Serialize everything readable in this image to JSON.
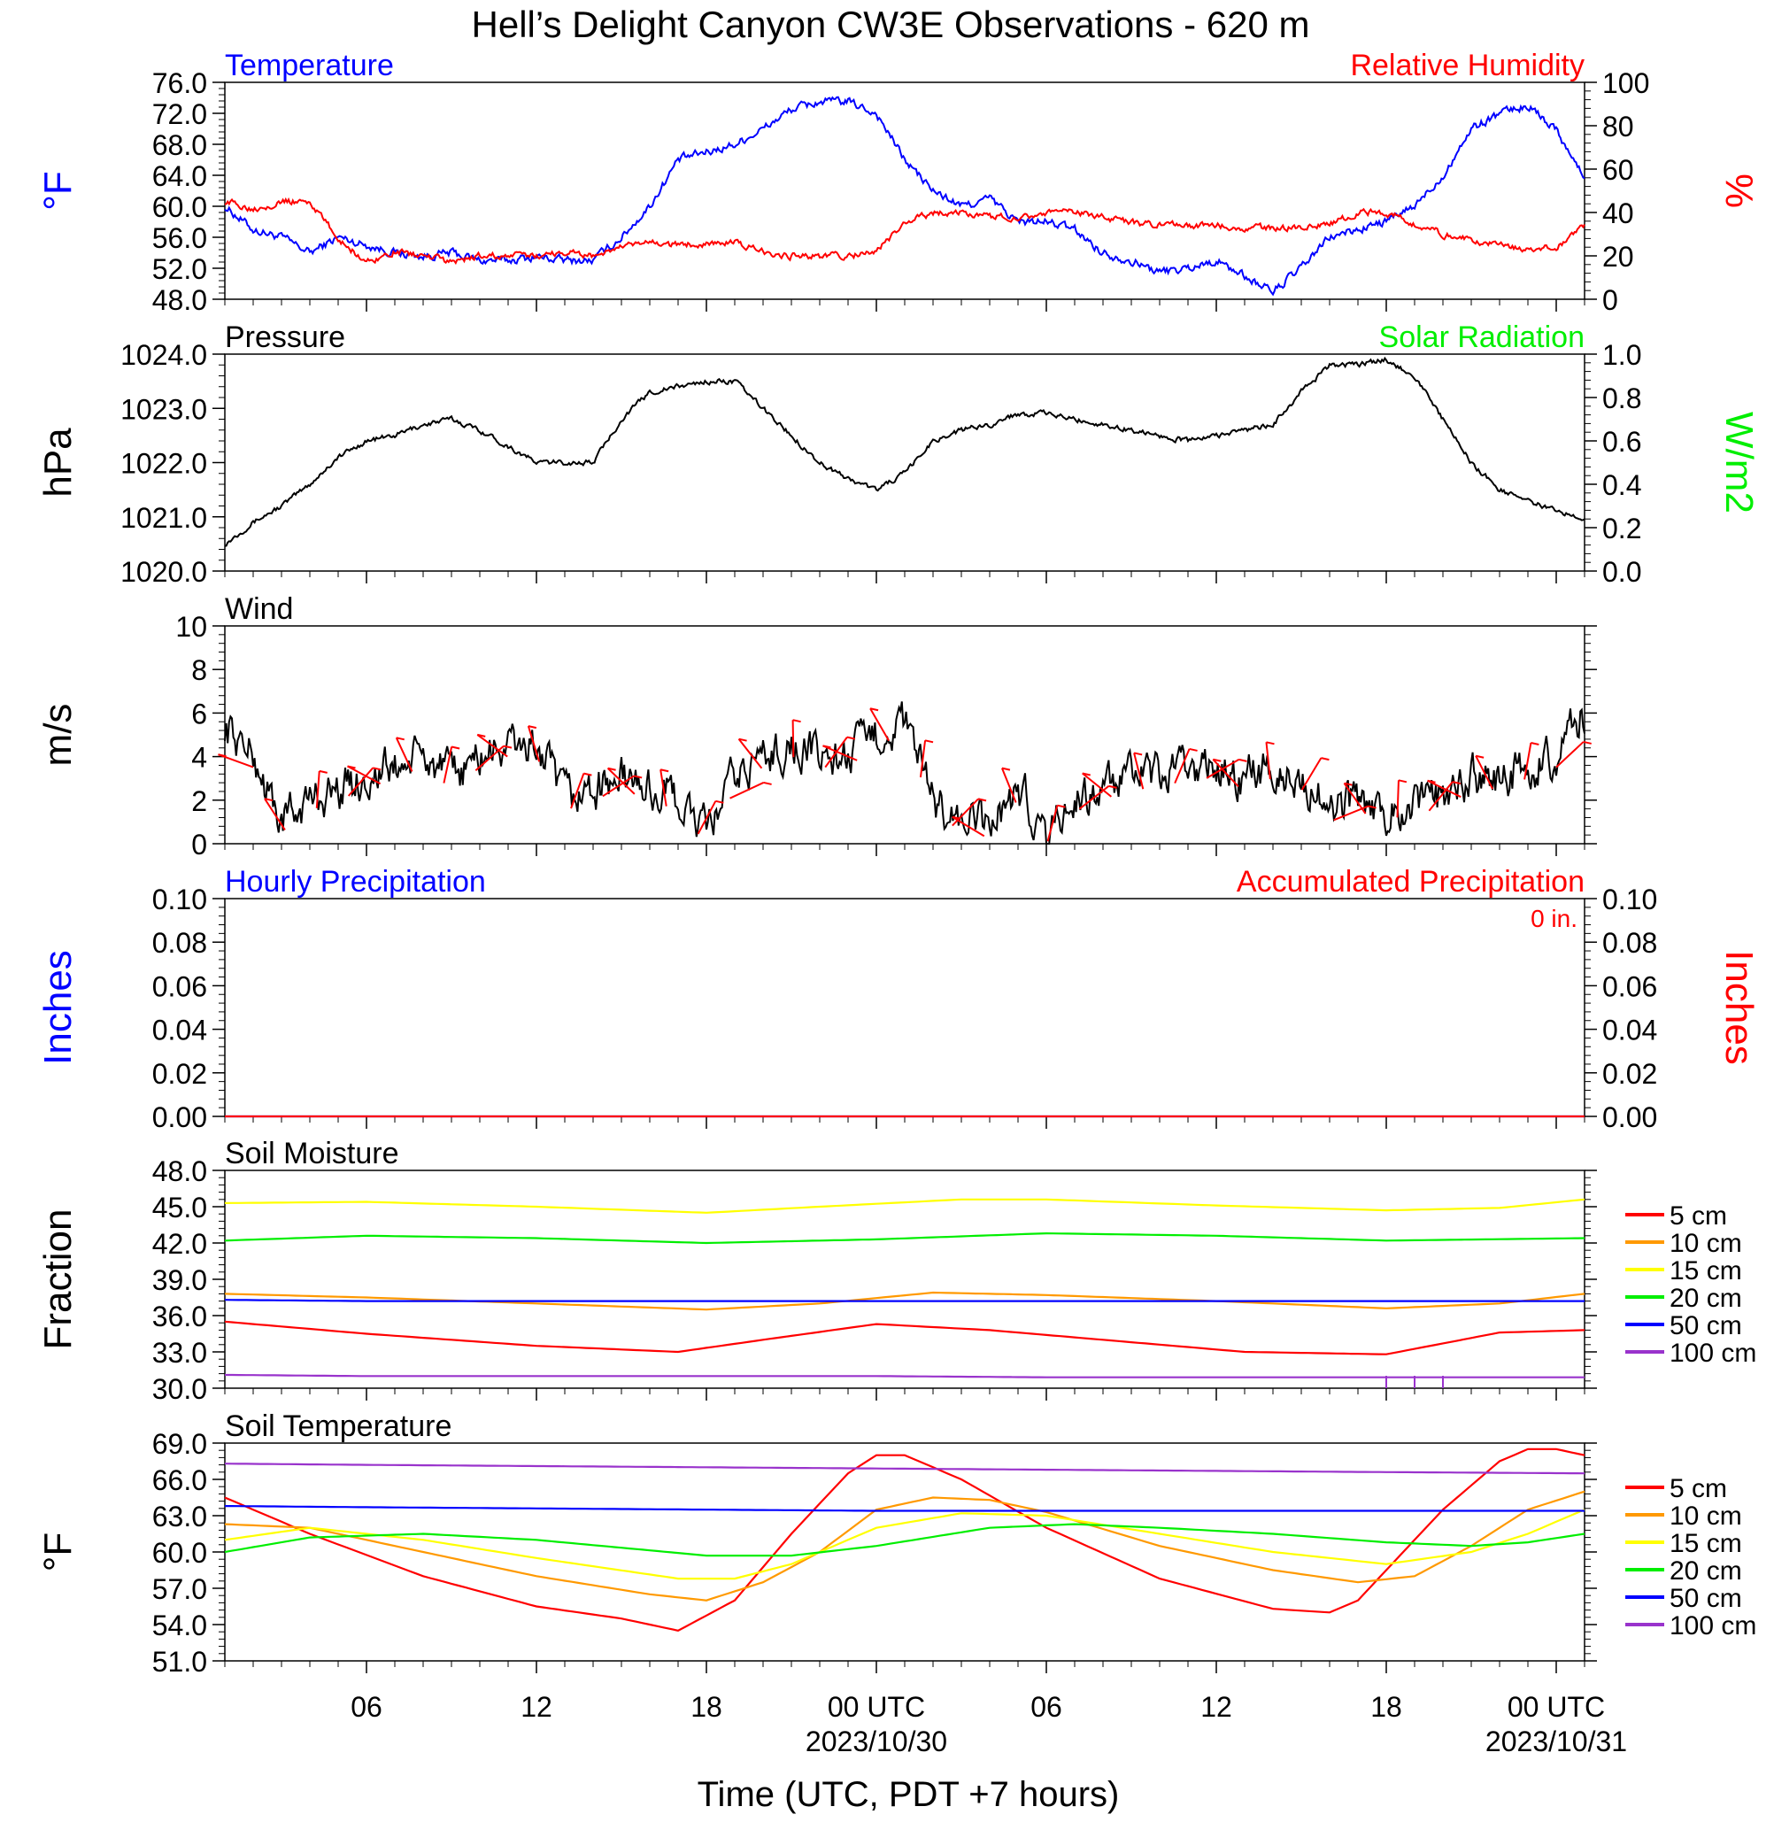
{
  "title": "Hell’s Delight Canyon CW3E Observations - 620 m",
  "xaxis": {
    "title": "Time (UTC, PDT +7 hours)",
    "range_hours": [
      -23,
      25
    ],
    "ticks": [
      {
        "h": -18,
        "label": "06",
        "date": ""
      },
      {
        "h": -12,
        "label": "12",
        "date": ""
      },
      {
        "h": -6,
        "label": "18",
        "date": ""
      },
      {
        "h": 0,
        "label": "00 UTC",
        "date": "2023/10/30"
      },
      {
        "h": 6,
        "label": "06",
        "date": ""
      },
      {
        "h": 12,
        "label": "12",
        "date": ""
      },
      {
        "h": 18,
        "label": "18",
        "date": ""
      },
      {
        "h": 24,
        "label": "00 UTC",
        "date": "2023/10/31"
      }
    ]
  },
  "colors": {
    "blue": "#0000ff",
    "red": "#ff0000",
    "green": "#00ee00",
    "black": "#000000"
  },
  "panels": {
    "temperature": {
      "left_title": "Temperature",
      "right_title": "Relative Humidity",
      "left_unit": "°F",
      "right_unit": "%",
      "left_ticks": [
        "76.0",
        "72.0",
        "68.0",
        "64.0",
        "60.0",
        "56.0",
        "52.0",
        "48.0"
      ],
      "right_ticks": [
        "100",
        "80",
        "60",
        "40",
        "20",
        "0"
      ]
    },
    "pressure": {
      "left_title": "Pressure",
      "right_title": "Solar Radiation",
      "left_unit": "hPa",
      "right_unit": "W/m2",
      "left_ticks": [
        "1024.0",
        "1023.0",
        "1022.0",
        "1021.0",
        "1020.0"
      ],
      "right_ticks": [
        "1.0",
        "0.8",
        "0.6",
        "0.4",
        "0.2",
        "0.0"
      ]
    },
    "wind": {
      "left_title": "Wind",
      "left_unit": "m/s",
      "left_ticks": [
        "10",
        "8",
        "6",
        "4",
        "2",
        "0"
      ]
    },
    "precip": {
      "left_title": "Hourly Precipitation",
      "right_title": "Accumulated Precipitation",
      "accum_text": "0 in.",
      "left_unit": "Inches",
      "right_unit": "Inches",
      "left_ticks": [
        "0.10",
        "0.08",
        "0.06",
        "0.04",
        "0.02",
        "0.00"
      ],
      "right_ticks": [
        "0.10",
        "0.08",
        "0.06",
        "0.04",
        "0.02",
        "0.00"
      ]
    },
    "soil_moisture": {
      "left_title": "Soil Moisture",
      "left_unit": "Fraction",
      "left_ticks": [
        "48.0",
        "45.0",
        "42.0",
        "39.0",
        "36.0",
        "33.0",
        "30.0"
      ]
    },
    "soil_temperature": {
      "left_title": "Soil Temperature",
      "left_unit": "°F",
      "left_ticks": [
        "69.0",
        "66.0",
        "63.0",
        "60.0",
        "57.0",
        "54.0",
        "51.0"
      ]
    }
  },
  "chart_data": [
    {
      "type": "line",
      "panel": "temperature",
      "ylim_left": [
        48,
        76
      ],
      "ylim_right": [
        0,
        100
      ],
      "series": [
        {
          "name": "Temperature",
          "axis": "left",
          "color": "#0000ff",
          "x": [
            -23,
            -22,
            -21,
            -20,
            -19,
            -18,
            -17,
            -16,
            -15,
            -14,
            -13,
            -12,
            -11,
            -10,
            -9,
            -8,
            -7,
            -6,
            -5,
            -4,
            -3,
            -2,
            -1,
            0,
            1,
            2,
            3,
            4,
            5,
            6,
            7,
            8,
            9,
            10,
            11,
            12,
            13,
            14,
            15,
            16,
            17,
            18,
            19,
            20,
            21,
            22,
            23,
            24,
            25
          ],
          "y": [
            60,
            57,
            56,
            54,
            56,
            55,
            54,
            53.5,
            54,
            53,
            53,
            53.5,
            53,
            53,
            56,
            60,
            66,
            67,
            68,
            70,
            72.5,
            73.5,
            73.5,
            72,
            66,
            62,
            60,
            61,
            58,
            58,
            57,
            54,
            53,
            51.5,
            52,
            53,
            51,
            49,
            52,
            56,
            57,
            58,
            60,
            64,
            70,
            72,
            73,
            70,
            63.5
          ]
        },
        {
          "name": "Relative Humidity",
          "axis": "right",
          "color": "#ff0000",
          "x": [
            -23,
            -22,
            -21,
            -20,
            -19,
            -18,
            -17,
            -16,
            -15,
            -14,
            -13,
            -12,
            -11,
            -10,
            -9,
            -8,
            -7,
            -6,
            -5,
            -4,
            -3,
            -2,
            -1,
            0,
            1,
            2,
            3,
            4,
            5,
            6,
            7,
            8,
            9,
            10,
            11,
            12,
            13,
            14,
            15,
            16,
            17,
            18,
            19,
            20,
            21,
            22,
            23,
            24,
            25
          ],
          "y": [
            45,
            42,
            45,
            45,
            28,
            17,
            22,
            20,
            17,
            20,
            20,
            20,
            22,
            20,
            24,
            26,
            25,
            26,
            26,
            22,
            20,
            20,
            20,
            22,
            35,
            40,
            40,
            38,
            38,
            40,
            40,
            38,
            35,
            34,
            34,
            34,
            33,
            33,
            33,
            35,
            40,
            40,
            35,
            30,
            27,
            25,
            23,
            24,
            34
          ]
        }
      ]
    },
    {
      "type": "line",
      "panel": "pressure",
      "ylim_left": [
        1020,
        1024
      ],
      "ylim_right": [
        0,
        1
      ],
      "series": [
        {
          "name": "Pressure",
          "axis": "left",
          "color": "#000000",
          "x": [
            -23,
            -22,
            -21,
            -20,
            -19,
            -18,
            -17,
            -16,
            -15,
            -14,
            -13,
            -12,
            -11,
            -10,
            -9,
            -8,
            -7,
            -6,
            -5,
            -4,
            -3,
            -2,
            -1,
            0,
            1,
            2,
            3,
            4,
            5,
            6,
            7,
            8,
            9,
            10,
            11,
            12,
            13,
            14,
            15,
            16,
            17,
            18,
            19,
            20,
            21,
            22,
            23,
            24,
            25
          ],
          "y": [
            1020.5,
            1020.9,
            1021.2,
            1021.6,
            1022.1,
            1022.4,
            1022.5,
            1022.7,
            1022.8,
            1022.6,
            1022.3,
            1022.0,
            1022.0,
            1022.0,
            1022.8,
            1023.3,
            1023.4,
            1023.5,
            1023.5,
            1023.0,
            1022.5,
            1022.0,
            1021.7,
            1021.5,
            1021.8,
            1022.4,
            1022.6,
            1022.7,
            1022.9,
            1022.9,
            1022.8,
            1022.7,
            1022.6,
            1022.5,
            1022.4,
            1022.5,
            1022.6,
            1022.7,
            1023.3,
            1023.8,
            1023.8,
            1023.9,
            1023.6,
            1022.8,
            1022.0,
            1021.5,
            1021.3,
            1021.1,
            1021.0
          ]
        }
      ]
    },
    {
      "type": "line",
      "panel": "wind",
      "ylim_left": [
        0,
        10
      ],
      "series": [
        {
          "name": "Wind speed",
          "axis": "left",
          "color": "#000000",
          "x": [
            -23,
            -22,
            -21,
            -20,
            -19,
            -18,
            -17,
            -16,
            -15,
            -14,
            -13,
            -12,
            -11,
            -10,
            -9,
            -8,
            -7,
            -6,
            -5,
            -4,
            -3,
            -2,
            -1,
            0,
            1,
            2,
            3,
            4,
            5,
            6,
            7,
            8,
            9,
            10,
            11,
            12,
            13,
            14,
            15,
            16,
            17,
            18,
            19,
            20,
            21,
            22,
            23,
            24,
            25
          ],
          "y": [
            5.5,
            4,
            1,
            2,
            2.5,
            3,
            3.5,
            4,
            3,
            4,
            4.5,
            4.5,
            2,
            2.5,
            3,
            2.5,
            2,
            0.5,
            3,
            4,
            4.5,
            4,
            4,
            5,
            5.5,
            2,
            1,
            0.8,
            2.5,
            0.5,
            2,
            2.5,
            3,
            3,
            3.5,
            3.5,
            3,
            3.5,
            3,
            1.5,
            2,
            1.5,
            2,
            2,
            3,
            3,
            3.5,
            4,
            6
          ]
        }
      ],
      "wind_barbs": {
        "color": "#ff0000",
        "count": 42
      }
    },
    {
      "type": "line",
      "panel": "precip",
      "ylim_left": [
        0,
        0.1
      ],
      "ylim_right": [
        0,
        0.1
      ],
      "series": [
        {
          "name": "Hourly Precipitation",
          "axis": "left",
          "color": "#0000ff",
          "x": [
            -23,
            25
          ],
          "y": [
            0,
            0
          ]
        },
        {
          "name": "Accumulated Precipitation",
          "axis": "right",
          "color": "#ff0000",
          "x": [
            -23,
            25
          ],
          "y": [
            0,
            0
          ]
        }
      ]
    },
    {
      "type": "line",
      "panel": "soil_moisture",
      "ylim_left": [
        30,
        48
      ],
      "series": [
        {
          "name": "5 cm",
          "color": "#ff0000",
          "x": [
            -23,
            -18,
            -12,
            -7,
            -4,
            0,
            4,
            9,
            13,
            18,
            22,
            25
          ],
          "y": [
            35.5,
            34.5,
            33.5,
            33.0,
            34.0,
            35.3,
            34.8,
            33.8,
            33.0,
            32.8,
            34.6,
            34.8
          ]
        },
        {
          "name": "10 cm",
          "color": "#ff9900",
          "x": [
            -23,
            -18,
            -12,
            -6,
            -2,
            2,
            6,
            12,
            18,
            22,
            25
          ],
          "y": [
            37.8,
            37.5,
            37.0,
            36.5,
            37.0,
            37.9,
            37.7,
            37.2,
            36.6,
            37.0,
            37.8
          ]
        },
        {
          "name": "15 cm",
          "color": "#ffff00",
          "x": [
            -23,
            -18,
            -12,
            -6,
            -2,
            3,
            6,
            12,
            18,
            22,
            25
          ],
          "y": [
            45.3,
            45.4,
            45.0,
            44.5,
            45.0,
            45.6,
            45.6,
            45.1,
            44.7,
            44.9,
            45.6
          ]
        },
        {
          "name": "20 cm",
          "color": "#00ee00",
          "x": [
            -23,
            -18,
            -12,
            -6,
            0,
            6,
            12,
            18,
            25
          ],
          "y": [
            42.2,
            42.6,
            42.4,
            42.0,
            42.3,
            42.8,
            42.6,
            42.2,
            42.4
          ]
        },
        {
          "name": "50 cm",
          "color": "#0000ff",
          "x": [
            -23,
            -18,
            -6,
            0,
            6,
            12,
            18,
            25
          ],
          "y": [
            37.3,
            37.2,
            37.2,
            37.2,
            37.2,
            37.2,
            37.2,
            37.2
          ]
        },
        {
          "name": "100 cm",
          "color": "#9933cc",
          "x": [
            -23,
            -18,
            -6,
            0,
            6,
            12,
            18,
            25
          ],
          "y": [
            31.1,
            31.0,
            31.0,
            31.0,
            30.9,
            30.9,
            30.9,
            30.9
          ]
        }
      ]
    },
    {
      "type": "line",
      "panel": "soil_temperature",
      "ylim_left": [
        51,
        69
      ],
      "series": [
        {
          "name": "5 cm",
          "color": "#ff0000",
          "x": [
            -23,
            -20,
            -16,
            -12,
            -9,
            -7,
            -5,
            -3,
            -1,
            0,
            1,
            3,
            6,
            10,
            14,
            16,
            17,
            18,
            20,
            22,
            23,
            24,
            25
          ],
          "y": [
            64.5,
            61.5,
            58.0,
            55.5,
            54.5,
            53.5,
            56.0,
            61.5,
            66.5,
            68.0,
            68.0,
            66.0,
            62.0,
            57.8,
            55.3,
            55.0,
            56.0,
            58.5,
            63.5,
            67.5,
            68.5,
            68.5,
            68.0
          ]
        },
        {
          "name": "10 cm",
          "color": "#ff9900",
          "x": [
            -23,
            -20,
            -16,
            -12,
            -8,
            -6,
            -4,
            -2,
            0,
            2,
            4,
            6,
            10,
            14,
            17,
            19,
            21,
            23,
            25
          ],
          "y": [
            62.3,
            62.0,
            60.0,
            58.0,
            56.5,
            56.0,
            57.5,
            60.0,
            63.5,
            64.5,
            64.3,
            63.3,
            60.5,
            58.5,
            57.5,
            58.0,
            60.5,
            63.5,
            65.0
          ]
        },
        {
          "name": "15 cm",
          "color": "#ffff00",
          "x": [
            -23,
            -20,
            -16,
            -12,
            -7,
            -5,
            -3,
            0,
            3,
            6,
            10,
            14,
            18,
            21,
            23,
            25
          ],
          "y": [
            61.0,
            62.0,
            61.0,
            59.5,
            57.8,
            57.8,
            59.0,
            62.0,
            63.2,
            63.0,
            61.5,
            60.0,
            59.0,
            60.0,
            61.5,
            63.5
          ]
        },
        {
          "name": "20 cm",
          "color": "#00ee00",
          "x": [
            -23,
            -20,
            -16,
            -12,
            -6,
            -3,
            0,
            4,
            7,
            10,
            14,
            18,
            21,
            23,
            25
          ],
          "y": [
            60.0,
            61.2,
            61.5,
            61.0,
            59.7,
            59.7,
            60.5,
            62.0,
            62.3,
            62.0,
            61.5,
            60.8,
            60.5,
            60.8,
            61.5
          ]
        },
        {
          "name": "50 cm",
          "color": "#0000ff",
          "x": [
            -23,
            -18,
            -12,
            -6,
            0,
            6,
            12,
            18,
            25
          ],
          "y": [
            63.8,
            63.7,
            63.6,
            63.5,
            63.4,
            63.4,
            63.4,
            63.4,
            63.4
          ]
        },
        {
          "name": "100 cm",
          "color": "#9933cc",
          "x": [
            -23,
            -18,
            -12,
            -6,
            0,
            6,
            12,
            18,
            25
          ],
          "y": [
            67.3,
            67.2,
            67.1,
            67.0,
            66.9,
            66.8,
            66.7,
            66.6,
            66.5
          ]
        }
      ]
    }
  ]
}
